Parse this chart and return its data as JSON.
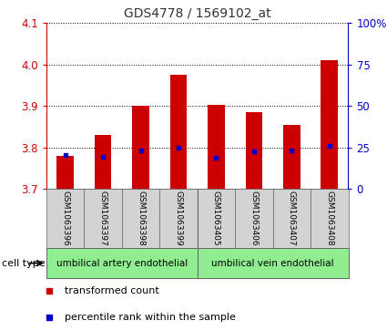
{
  "title": "GDS4778 / 1569102_at",
  "samples": [
    "GSM1063396",
    "GSM1063397",
    "GSM1063398",
    "GSM1063399",
    "GSM1063405",
    "GSM1063406",
    "GSM1063407",
    "GSM1063408"
  ],
  "transformed_count": [
    3.78,
    3.83,
    3.9,
    3.975,
    3.902,
    3.885,
    3.855,
    4.01
  ],
  "percentile_rank": [
    3.782,
    3.778,
    3.792,
    3.8,
    3.774,
    3.79,
    3.793,
    3.803
  ],
  "ylim_left": [
    3.7,
    4.1
  ],
  "yticks_left": [
    3.7,
    3.8,
    3.9,
    4.0,
    4.1
  ],
  "ylim_right": [
    0,
    100
  ],
  "yticks_right": [
    0,
    25,
    50,
    75,
    100
  ],
  "ytick_labels_right": [
    "0",
    "25",
    "50",
    "75",
    "100%"
  ],
  "bar_color": "#cc0000",
  "dot_color": "#0000cc",
  "bar_bottom": 3.7,
  "cell_types": [
    {
      "label": "umbilical artery endothelial",
      "start": 0,
      "end": 4,
      "color": "#90ee90"
    },
    {
      "label": "umbilical vein endothelial",
      "start": 4,
      "end": 8,
      "color": "#90ee90"
    }
  ],
  "cell_type_label": "cell type",
  "legend_items": [
    {
      "color": "#cc0000",
      "label": "transformed count"
    },
    {
      "color": "#0000cc",
      "label": "percentile rank within the sample"
    }
  ],
  "background_color": "#ffffff",
  "grid_color": "#000000",
  "left_tick_color": "#cc0000",
  "right_tick_color": "#0000cc",
  "sample_box_color": "#d3d3d3",
  "sample_box_edge": "#666666"
}
